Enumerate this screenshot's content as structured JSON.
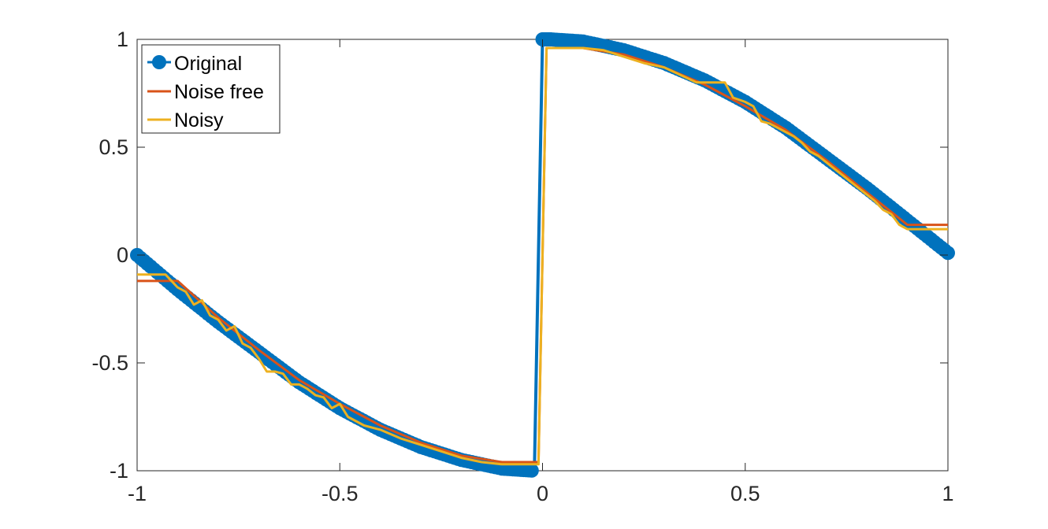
{
  "chart_data": {
    "type": "line",
    "title": "",
    "xlabel": "",
    "ylabel": "",
    "xlim": [
      -1,
      1
    ],
    "ylim": [
      -1,
      1
    ],
    "xticks": [
      "-1",
      "-0.5",
      "0",
      "0.5",
      "1"
    ],
    "yticks": [
      "-1",
      "-0.5",
      "0",
      "0.5",
      "1"
    ],
    "grid": false,
    "legend_position": "top-left",
    "legend": [
      "Original",
      "Noise free",
      "Noisy"
    ],
    "series": [
      {
        "name": "Original",
        "color": "#0072BD",
        "style": "line-with-markers",
        "x": [
          -1.0,
          -0.9,
          -0.8,
          -0.7,
          -0.6,
          -0.5,
          -0.4,
          -0.3,
          -0.2,
          -0.1,
          -0.02,
          0.0,
          0.02,
          0.1,
          0.2,
          0.3,
          0.4,
          0.5,
          0.6,
          0.7,
          0.8,
          0.9,
          1.0
        ],
        "y": [
          0.0,
          -0.16,
          -0.31,
          -0.45,
          -0.59,
          -0.71,
          -0.81,
          -0.89,
          -0.95,
          -0.99,
          -1.0,
          1.0,
          1.0,
          0.99,
          0.95,
          0.89,
          0.81,
          0.71,
          0.59,
          0.45,
          0.31,
          0.16,
          0.01
        ]
      },
      {
        "name": "Noise free",
        "color": "#D95319",
        "style": "line",
        "x": [
          -1.0,
          -0.95,
          -0.9,
          -0.8,
          -0.7,
          -0.6,
          -0.5,
          -0.4,
          -0.3,
          -0.2,
          -0.1,
          -0.01,
          0.0,
          0.01,
          0.1,
          0.2,
          0.3,
          0.4,
          0.5,
          0.6,
          0.7,
          0.8,
          0.9,
          0.95,
          1.0
        ],
        "y": [
          -0.12,
          -0.12,
          -0.12,
          -0.29,
          -0.44,
          -0.58,
          -0.69,
          -0.79,
          -0.87,
          -0.93,
          -0.96,
          -0.96,
          0.0,
          0.96,
          0.96,
          0.93,
          0.87,
          0.79,
          0.69,
          0.58,
          0.44,
          0.29,
          0.14,
          0.14,
          0.14
        ]
      },
      {
        "name": "Noisy",
        "color": "#EDB120",
        "style": "line",
        "x": [
          -1.0,
          -0.97,
          -0.95,
          -0.93,
          -0.9,
          -0.88,
          -0.86,
          -0.84,
          -0.82,
          -0.8,
          -0.78,
          -0.76,
          -0.74,
          -0.72,
          -0.7,
          -0.68,
          -0.66,
          -0.64,
          -0.62,
          -0.6,
          -0.58,
          -0.56,
          -0.54,
          -0.52,
          -0.5,
          -0.48,
          -0.46,
          -0.44,
          -0.42,
          -0.4,
          -0.35,
          -0.3,
          -0.25,
          -0.2,
          -0.15,
          -0.1,
          -0.05,
          -0.01,
          0.0,
          0.01,
          0.02,
          0.05,
          0.1,
          0.15,
          0.2,
          0.25,
          0.3,
          0.38,
          0.4,
          0.45,
          0.47,
          0.5,
          0.52,
          0.54,
          0.56,
          0.58,
          0.6,
          0.62,
          0.64,
          0.66,
          0.68,
          0.7,
          0.72,
          0.74,
          0.76,
          0.78,
          0.8,
          0.82,
          0.84,
          0.86,
          0.88,
          0.9,
          0.95,
          1.0
        ],
        "y": [
          -0.09,
          -0.09,
          -0.09,
          -0.09,
          -0.15,
          -0.17,
          -0.23,
          -0.21,
          -0.28,
          -0.3,
          -0.35,
          -0.33,
          -0.41,
          -0.43,
          -0.48,
          -0.54,
          -0.54,
          -0.55,
          -0.6,
          -0.6,
          -0.62,
          -0.65,
          -0.66,
          -0.71,
          -0.69,
          -0.75,
          -0.77,
          -0.79,
          -0.8,
          -0.81,
          -0.85,
          -0.88,
          -0.91,
          -0.94,
          -0.96,
          -0.97,
          -0.97,
          -0.97,
          0.0,
          0.96,
          0.96,
          0.96,
          0.96,
          0.95,
          0.92,
          0.89,
          0.87,
          0.8,
          0.8,
          0.8,
          0.73,
          0.71,
          0.69,
          0.62,
          0.61,
          0.59,
          0.57,
          0.55,
          0.52,
          0.48,
          0.46,
          0.43,
          0.4,
          0.37,
          0.34,
          0.31,
          0.28,
          0.25,
          0.21,
          0.19,
          0.14,
          0.12,
          0.12,
          0.12
        ]
      }
    ]
  }
}
